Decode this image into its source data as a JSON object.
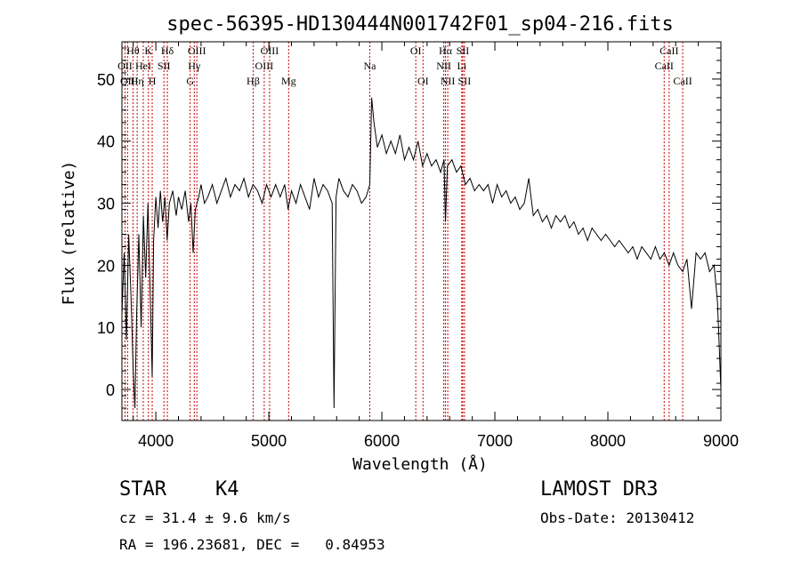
{
  "chart_data": {
    "type": "line",
    "title": "spec-56395-HD130444N001742F01_sp04-216.fits",
    "xlabel": "Wavelength (Å)",
    "ylabel": "Flux (relative)",
    "xlim": [
      3700,
      9000
    ],
    "ylim": [
      -5,
      56
    ],
    "xticks": [
      4000,
      5000,
      6000,
      7000,
      8000,
      9000
    ],
    "yticks": [
      0,
      10,
      20,
      30,
      40,
      50
    ],
    "grid": false,
    "series": [
      {
        "points": [
          [
            3700,
            12
          ],
          [
            3720,
            22
          ],
          [
            3740,
            8
          ],
          [
            3760,
            25
          ],
          [
            3780,
            15
          ],
          [
            3800,
            3
          ],
          [
            3815,
            -3
          ],
          [
            3830,
            12
          ],
          [
            3850,
            25
          ],
          [
            3870,
            10
          ],
          [
            3890,
            28
          ],
          [
            3910,
            18
          ],
          [
            3930,
            30
          ],
          [
            3950,
            16
          ],
          [
            3968,
            2
          ],
          [
            3980,
            24
          ],
          [
            4000,
            31
          ],
          [
            4020,
            26
          ],
          [
            4040,
            32
          ],
          [
            4060,
            27
          ],
          [
            4080,
            31
          ],
          [
            4100,
            24
          ],
          [
            4120,
            30
          ],
          [
            4150,
            32
          ],
          [
            4180,
            28
          ],
          [
            4200,
            31
          ],
          [
            4230,
            29
          ],
          [
            4260,
            32
          ],
          [
            4290,
            27
          ],
          [
            4310,
            30
          ],
          [
            4330,
            22
          ],
          [
            4350,
            29
          ],
          [
            4380,
            31
          ],
          [
            4400,
            33
          ],
          [
            4430,
            30
          ],
          [
            4460,
            31
          ],
          [
            4500,
            33
          ],
          [
            4540,
            30
          ],
          [
            4580,
            32
          ],
          [
            4620,
            34
          ],
          [
            4660,
            31
          ],
          [
            4700,
            33
          ],
          [
            4740,
            32
          ],
          [
            4780,
            34
          ],
          [
            4820,
            31
          ],
          [
            4860,
            33
          ],
          [
            4900,
            32
          ],
          [
            4940,
            30
          ],
          [
            4980,
            33
          ],
          [
            5020,
            31
          ],
          [
            5060,
            33
          ],
          [
            5100,
            31
          ],
          [
            5140,
            33
          ],
          [
            5170,
            29
          ],
          [
            5200,
            32
          ],
          [
            5240,
            30
          ],
          [
            5280,
            33
          ],
          [
            5320,
            31
          ],
          [
            5360,
            29
          ],
          [
            5400,
            34
          ],
          [
            5440,
            31
          ],
          [
            5480,
            33
          ],
          [
            5520,
            32
          ],
          [
            5560,
            30
          ],
          [
            5577,
            -3
          ],
          [
            5595,
            31
          ],
          [
            5620,
            34
          ],
          [
            5660,
            32
          ],
          [
            5700,
            31
          ],
          [
            5740,
            33
          ],
          [
            5780,
            32
          ],
          [
            5820,
            30
          ],
          [
            5860,
            31
          ],
          [
            5893,
            33
          ],
          [
            5910,
            47
          ],
          [
            5930,
            43
          ],
          [
            5960,
            39
          ],
          [
            6000,
            41
          ],
          [
            6040,
            38
          ],
          [
            6080,
            40
          ],
          [
            6120,
            38
          ],
          [
            6160,
            41
          ],
          [
            6200,
            37
          ],
          [
            6240,
            39
          ],
          [
            6280,
            37
          ],
          [
            6320,
            40
          ],
          [
            6360,
            36
          ],
          [
            6400,
            38
          ],
          [
            6440,
            36
          ],
          [
            6480,
            37
          ],
          [
            6520,
            35
          ],
          [
            6550,
            37
          ],
          [
            6563,
            27
          ],
          [
            6580,
            36
          ],
          [
            6620,
            37
          ],
          [
            6660,
            35
          ],
          [
            6700,
            36
          ],
          [
            6740,
            33
          ],
          [
            6780,
            34
          ],
          [
            6820,
            32
          ],
          [
            6860,
            33
          ],
          [
            6900,
            32
          ],
          [
            6940,
            33
          ],
          [
            6980,
            30
          ],
          [
            7020,
            33
          ],
          [
            7060,
            31
          ],
          [
            7100,
            32
          ],
          [
            7140,
            30
          ],
          [
            7180,
            31
          ],
          [
            7220,
            29
          ],
          [
            7260,
            30
          ],
          [
            7300,
            34
          ],
          [
            7340,
            28
          ],
          [
            7380,
            29
          ],
          [
            7420,
            27
          ],
          [
            7460,
            28
          ],
          [
            7500,
            26
          ],
          [
            7540,
            28
          ],
          [
            7580,
            27
          ],
          [
            7620,
            28
          ],
          [
            7660,
            26
          ],
          [
            7700,
            27
          ],
          [
            7740,
            25
          ],
          [
            7780,
            26
          ],
          [
            7820,
            24
          ],
          [
            7860,
            26
          ],
          [
            7900,
            25
          ],
          [
            7940,
            24
          ],
          [
            7980,
            25
          ],
          [
            8020,
            24
          ],
          [
            8060,
            23
          ],
          [
            8100,
            24
          ],
          [
            8140,
            23
          ],
          [
            8180,
            22
          ],
          [
            8220,
            23
          ],
          [
            8260,
            21
          ],
          [
            8300,
            23
          ],
          [
            8340,
            22
          ],
          [
            8380,
            21
          ],
          [
            8420,
            23
          ],
          [
            8460,
            21
          ],
          [
            8500,
            22
          ],
          [
            8542,
            20
          ],
          [
            8580,
            22
          ],
          [
            8620,
            20
          ],
          [
            8662,
            19
          ],
          [
            8700,
            21
          ],
          [
            8740,
            13
          ],
          [
            8780,
            22
          ],
          [
            8820,
            21
          ],
          [
            8860,
            22
          ],
          [
            8900,
            19
          ],
          [
            8940,
            20
          ],
          [
            8970,
            14
          ],
          [
            9000,
            0
          ]
        ]
      }
    ],
    "lines": [
      {
        "x": 3727,
        "labels": [
          "OII"
        ],
        "row": 1
      },
      {
        "x": 3750,
        "labels": [
          "OII"
        ],
        "row": 2
      },
      {
        "x": 3798,
        "labels": [
          "Hθ"
        ],
        "row": 0
      },
      {
        "x": 3835,
        "labels": [
          "Hη"
        ],
        "row": 2
      },
      {
        "x": 3889,
        "labels": [
          "HeI"
        ],
        "row": 1
      },
      {
        "x": 3934,
        "labels": [
          "K"
        ],
        "row": 0
      },
      {
        "x": 3968,
        "labels": [
          "H"
        ],
        "row": 2
      },
      {
        "x": 4072,
        "labels": [
          "SII"
        ],
        "row": 1
      },
      {
        "x": 4102,
        "labels": [
          "Hδ"
        ],
        "row": 0
      },
      {
        "x": 4304,
        "labels": [
          "G"
        ],
        "row": 2
      },
      {
        "x": 4340,
        "labels": [
          "Hγ"
        ],
        "row": 1
      },
      {
        "x": 4363,
        "labels": [
          "OIII"
        ],
        "row": 0
      },
      {
        "x": 4861,
        "labels": [
          "Hβ"
        ],
        "row": 2
      },
      {
        "x": 4959,
        "labels": [
          "OIII"
        ],
        "row": 1
      },
      {
        "x": 5007,
        "labels": [
          "OIII"
        ],
        "row": 0
      },
      {
        "x": 5175,
        "labels": [
          "Mg"
        ],
        "row": 2
      },
      {
        "x": 5893,
        "labels": [
          "Na"
        ],
        "row": 1
      },
      {
        "x": 6300,
        "labels": [
          "OI"
        ],
        "row": 0
      },
      {
        "x": 6364,
        "labels": [
          "OI"
        ],
        "row": 2
      },
      {
        "x": 6548,
        "labels": [
          "NII"
        ],
        "row": 1
      },
      {
        "x": 6563,
        "labels": [
          "Hα"
        ],
        "row": 0
      },
      {
        "x": 6583,
        "labels": [
          "NII"
        ],
        "row": 2
      },
      {
        "x": 6707,
        "labels": [
          "Li"
        ],
        "row": 1
      },
      {
        "x": 6716,
        "labels": [
          "SII"
        ],
        "row": 0
      },
      {
        "x": 6731,
        "labels": [
          "SII"
        ],
        "row": 2
      },
      {
        "x": 8498,
        "labels": [
          "CaII"
        ],
        "row": 1
      },
      {
        "x": 8542,
        "labels": [
          "CaII"
        ],
        "row": 0
      },
      {
        "x": 8662,
        "labels": [
          "CaII"
        ],
        "row": 2
      }
    ],
    "line_color": "#cc0000",
    "curve_color": "#000000"
  },
  "info": {
    "class_label": "STAR",
    "subclass": "K4",
    "survey": "LAMOST DR3",
    "cz_line": "cz = 31.4 ± 9.6 km/s",
    "obs_date": "Obs-Date: 20130412",
    "radec_line": "RA = 196.23681, DEC =   0.84953"
  }
}
